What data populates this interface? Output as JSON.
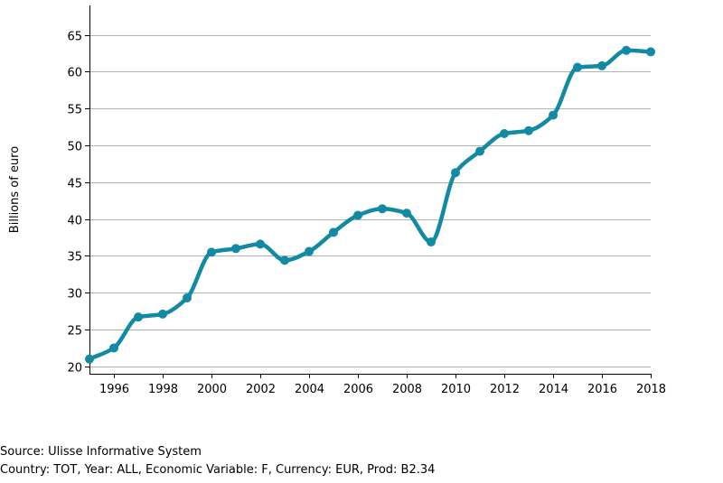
{
  "chart_data": {
    "type": "line",
    "title": "",
    "xlabel": "",
    "ylabel": "Billions of euro",
    "x": [
      1995,
      1996,
      1997,
      1998,
      1999,
      2000,
      2001,
      2002,
      2003,
      2004,
      2005,
      2006,
      2007,
      2008,
      2009,
      2010,
      2011,
      2012,
      2013,
      2014,
      2015,
      2016,
      2017,
      2018
    ],
    "series": [
      {
        "values": [
          21.0,
          22.5,
          26.7,
          27.1,
          29.3,
          35.5,
          36.0,
          36.6,
          34.4,
          35.6,
          38.2,
          40.5,
          41.4,
          40.8,
          36.9,
          46.3,
          49.2,
          51.6,
          52.0,
          54.1,
          60.6,
          60.8,
          62.9,
          62.7
        ],
        "color": "#138aa3"
      }
    ],
    "xlim": [
      1995,
      2018
    ],
    "ylim": [
      19,
      69
    ],
    "x_ticks": [
      1996,
      1998,
      2000,
      2002,
      2004,
      2006,
      2008,
      2010,
      2012,
      2014,
      2016,
      2018
    ],
    "y_ticks": [
      20,
      25,
      30,
      35,
      40,
      45,
      50,
      55,
      60,
      65
    ],
    "grid": "horizontal",
    "legend": "none"
  },
  "footer": {
    "source": "Source: Ulisse Informative System",
    "details": "Country: TOT, Year: ALL, Economic Variable: F, Currency: EUR, Prod: B2.34"
  }
}
